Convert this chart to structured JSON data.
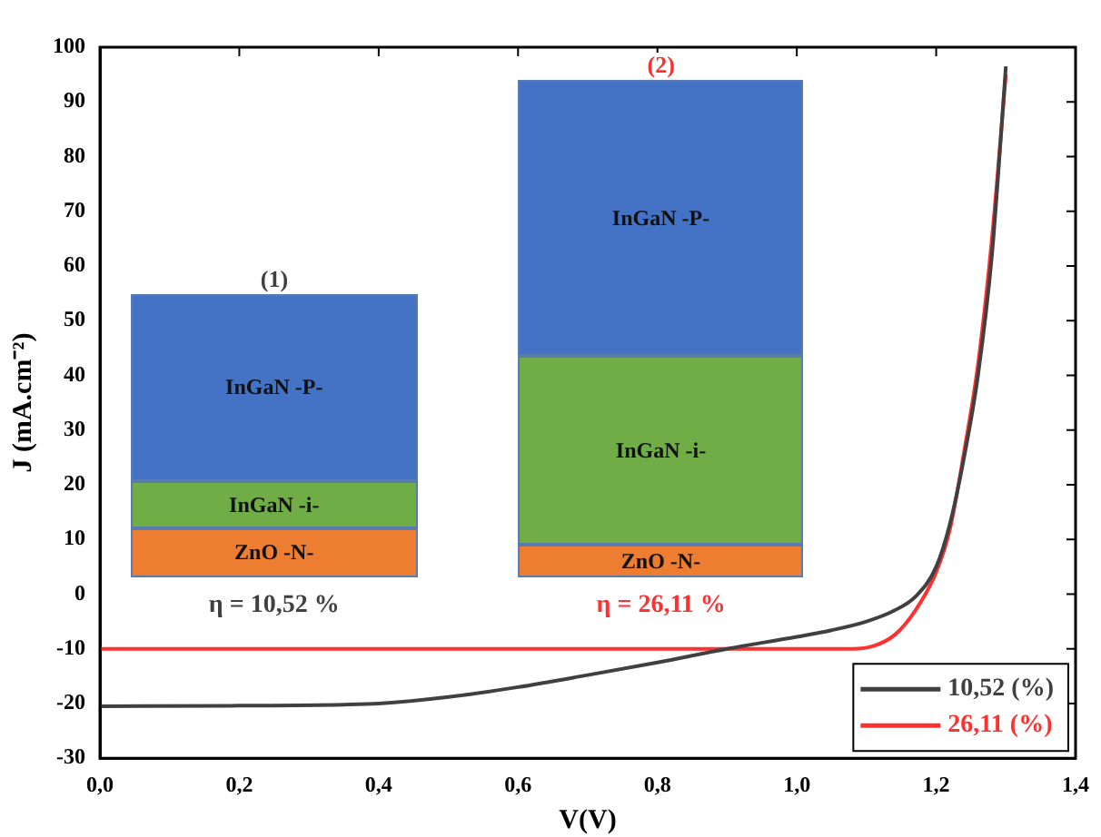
{
  "chart_data": {
    "type": "line",
    "xlabel": "V(V)",
    "ylabel": "J (mA.cm⁻²)",
    "xlim": [
      0,
      1.4
    ],
    "ylim": [
      -30,
      100
    ],
    "xticks": [
      {
        "value": 0,
        "label": "0,0"
      },
      {
        "value": 0.2,
        "label": "0,2"
      },
      {
        "value": 0.4,
        "label": "0,4"
      },
      {
        "value": 0.6,
        "label": "0,6"
      },
      {
        "value": 0.8,
        "label": "0,8"
      },
      {
        "value": 1,
        "label": "1,0"
      },
      {
        "value": 1.2,
        "label": "1,2"
      },
      {
        "value": 1.4,
        "label": "1,4"
      }
    ],
    "yticks": [
      -30,
      -20,
      -10,
      0,
      10,
      20,
      30,
      40,
      50,
      60,
      70,
      80,
      90,
      100
    ],
    "grid": false,
    "legend": "bottom right",
    "marker": "none",
    "line_style": "solid",
    "series": [
      {
        "name": "10,52 (%)",
        "color": "#404040",
        "x": [
          0,
          0.2,
          0.35,
          0.4,
          0.5,
          0.6,
          0.7,
          0.8,
          0.9,
          1.0,
          1.05,
          1.1,
          1.14,
          1.17,
          1.2,
          1.22,
          1.24,
          1.26,
          1.28,
          1.3
        ],
        "values": [
          -20.5,
          -20.4,
          -20.2,
          -20,
          -18.8,
          -17,
          -14.8,
          -12.5,
          -10,
          -7.8,
          -6.6,
          -5,
          -3,
          -0.5,
          5,
          13,
          25,
          40,
          62,
          96.5
        ]
      },
      {
        "name": "26,11 (%)",
        "color": "#ff3030",
        "x": [
          0,
          0.5,
          1.0,
          1.08,
          1.11,
          1.14,
          1.17,
          1.2,
          1.22,
          1.24,
          1.26,
          1.28,
          1.3
        ],
        "values": [
          -10,
          -10,
          -10,
          -10,
          -9.5,
          -7.5,
          -3,
          4,
          12,
          26,
          42,
          65,
          95
        ]
      }
    ],
    "annotations": [
      "(1)",
      "InGaN -P-",
      "InGaN -i-",
      "ZnO -N-",
      "η = 10,52 %",
      "(2)",
      "InGaN -P-",
      "InGaN -i-",
      "ZnO -N-",
      "η = 26,11 %"
    ]
  }
}
